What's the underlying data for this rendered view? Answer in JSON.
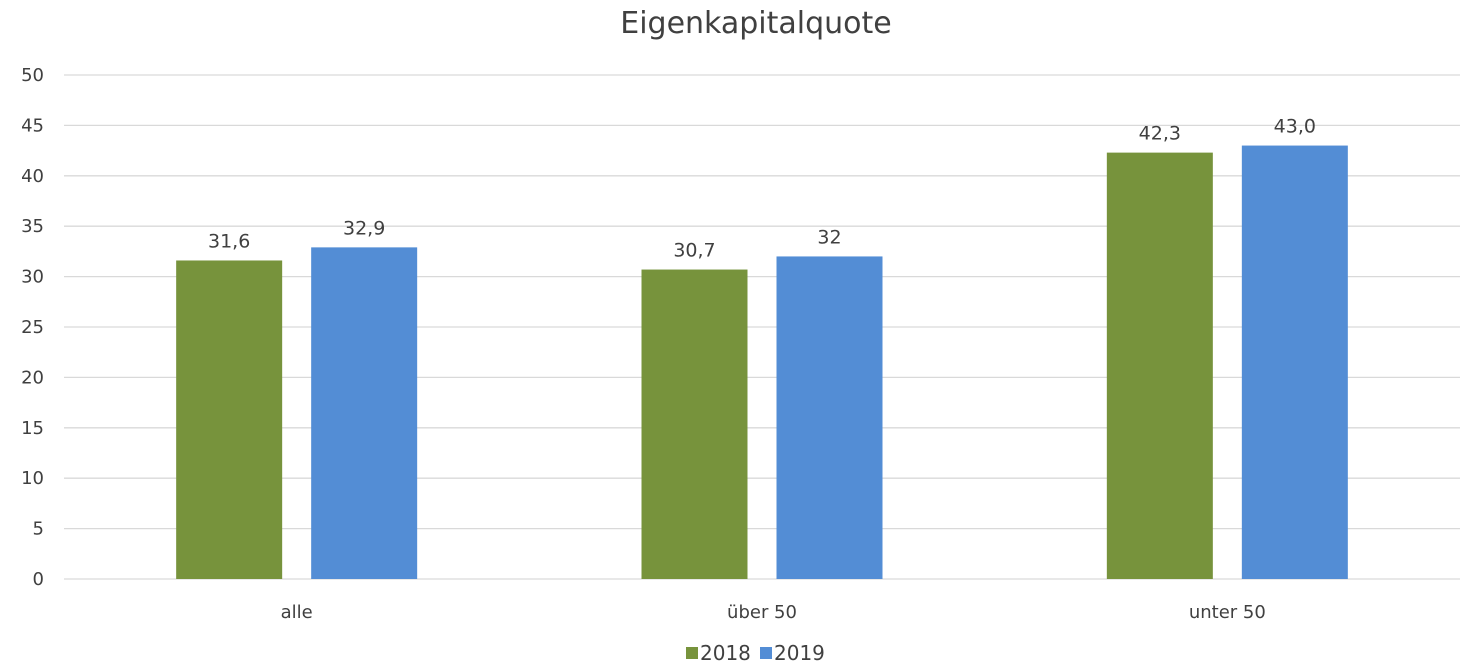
{
  "chart_data": {
    "type": "bar",
    "title": "Eigenkapitalquote",
    "categories": [
      "alle",
      "über 50",
      "unter 50"
    ],
    "series": [
      {
        "name": "2018",
        "values": [
          31.6,
          30.7,
          42.3
        ],
        "labels": [
          "31,6",
          "30,7",
          "42,3"
        ],
        "color": "#77933c"
      },
      {
        "name": "2019",
        "values": [
          32.9,
          32.0,
          43.0
        ],
        "labels": [
          "32,9",
          "32",
          "43,0"
        ],
        "color": "#538dd5"
      }
    ],
    "ylim": [
      0,
      50
    ],
    "yticks": [
      0,
      5,
      10,
      15,
      20,
      25,
      30,
      35,
      40,
      45,
      50
    ],
    "grid": true,
    "legend": "bottom"
  }
}
